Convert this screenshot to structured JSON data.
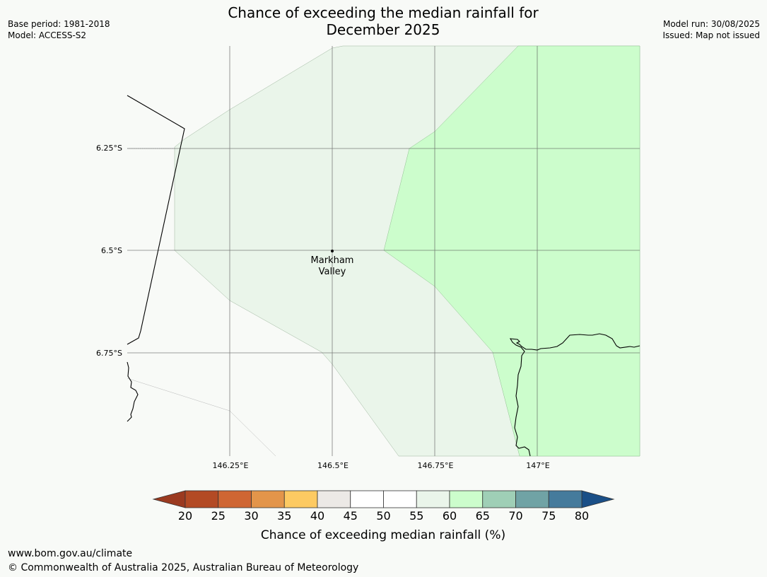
{
  "header": {
    "title_line1": "Chance of exceeding the median rainfall for",
    "title_line2": "December 2025",
    "base_period": "Base period: 1981-2018",
    "model": "Model: ACCESS-S2",
    "model_run": "Model run: 30/08/2025",
    "issued": "Issued: Map not issued"
  },
  "map": {
    "lat_labels": [
      "6.25°S",
      "6.5°S",
      "6.75°S"
    ],
    "lon_labels": [
      "146.25°E",
      "146.5°E",
      "146.75°E",
      "147°E"
    ],
    "place": {
      "name_line1": "Markham",
      "name_line2": "Valley"
    },
    "zone_colors": {
      "background": "#f8faf7",
      "band_55_60": "#eaf5ea",
      "band_60_65": "#ccfdcc",
      "coastline": "#000000",
      "gridline": "#555555"
    }
  },
  "colorbar": {
    "label": "Chance of exceeding median rainfall (%)",
    "ticks": [
      "20",
      "25",
      "30",
      "35",
      "40",
      "45",
      "50",
      "55",
      "60",
      "65",
      "70",
      "75",
      "80"
    ],
    "under_color": "#9b3a20",
    "over_color": "#1a4f87",
    "colors": [
      "#b34a24",
      "#cf6633",
      "#e3954a",
      "#fdca62",
      "#ece9e6",
      "#ffffff",
      "#ffffff",
      "#eaf5ea",
      "#ccfdcc",
      "#9fcfb6",
      "#70a3a5",
      "#457b9c"
    ]
  },
  "footer": {
    "url": "www.bom.gov.au/climate",
    "copyright": "© Commonwealth of Australia 2025, Australian Bureau of Meteorology"
  }
}
